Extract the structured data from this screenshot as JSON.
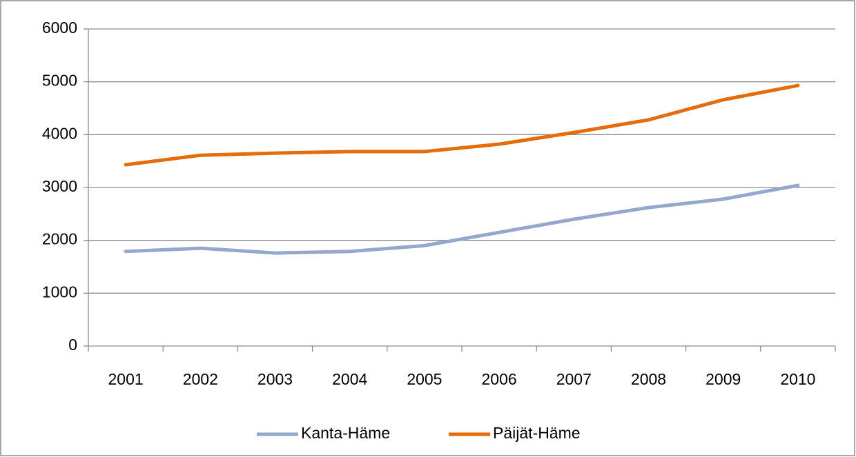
{
  "chart_data": {
    "type": "line",
    "categories": [
      "2001",
      "2002",
      "2003",
      "2004",
      "2005",
      "2006",
      "2007",
      "2008",
      "2009",
      "2010"
    ],
    "series": [
      {
        "name": "Kanta-Häme",
        "color": "#94a7cf",
        "values": [
          1790,
          1850,
          1760,
          1790,
          1900,
          2150,
          2400,
          2620,
          2780,
          3040
        ]
      },
      {
        "name": "Päijät-Häme",
        "color": "#e46c0a",
        "values": [
          3430,
          3610,
          3650,
          3680,
          3680,
          3820,
          4040,
          4280,
          4660,
          4930
        ]
      }
    ],
    "ylim": [
      0,
      6000
    ],
    "yticks": [
      0,
      1000,
      2000,
      3000,
      4000,
      5000,
      6000
    ],
    "grid": true,
    "legend": "bottom"
  }
}
